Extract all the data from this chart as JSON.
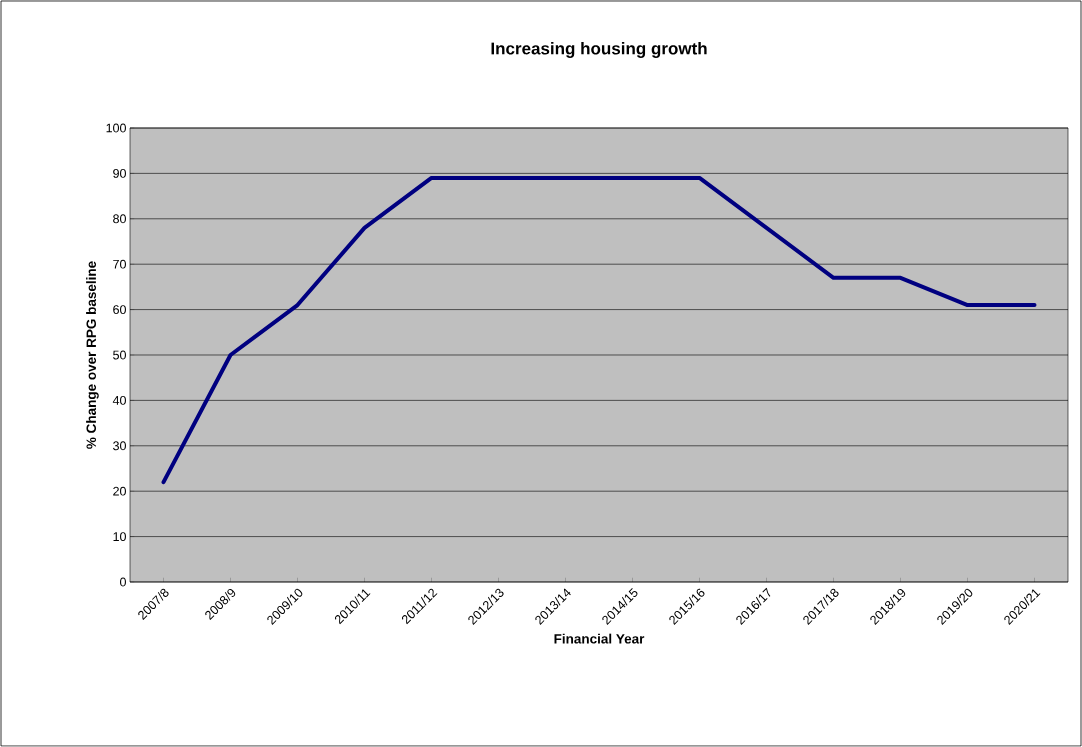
{
  "chart_data": {
    "type": "line",
    "title": "Increasing housing growth",
    "xlabel": "Financial Year",
    "ylabel": "% Change over RPG baseline",
    "categories": [
      "2007/8",
      "2008/9",
      "2009/10",
      "2010/11",
      "2011/12",
      "2012/13",
      "2013/14",
      "2014/15",
      "2015/16",
      "2016/17",
      "2017/18",
      "2018/19",
      "2019/20",
      "2020/21"
    ],
    "series": [
      {
        "color": "#000080",
        "values": [
          22,
          50,
          61,
          78,
          89,
          89,
          89,
          89,
          89,
          78,
          67,
          67,
          61,
          61
        ]
      }
    ],
    "ylim": [
      0,
      100
    ],
    "yticks": [
      0,
      10,
      20,
      30,
      40,
      50,
      60,
      70,
      80,
      90,
      100
    ],
    "grid": "y",
    "marker": "none",
    "line_style": "solid"
  }
}
